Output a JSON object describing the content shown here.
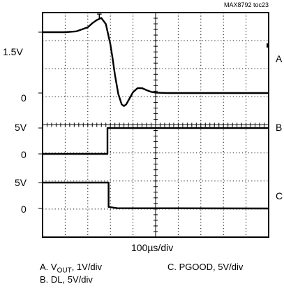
{
  "figure_id": "MAX8792 toc23",
  "chart_data": {
    "type": "line",
    "timebase": "100µs/div",
    "x_divisions": 10,
    "y_divisions": 8,
    "trigger_marker": "T",
    "channels": [
      {
        "letter": "A",
        "legend_name": "V",
        "legend_sub": "OUT",
        "scale": "1V/div",
        "levels": [
          {
            "label": "1.5V",
            "value": 1.5
          },
          {
            "label": "0",
            "value": 0
          }
        ],
        "x": [
          0,
          0.5,
          1,
          1.5,
          2,
          2.2,
          2.4,
          2.6,
          2.8,
          3.0,
          3.1,
          3.2,
          3.35,
          3.5,
          3.6,
          3.7,
          3.8,
          3.9,
          4.0,
          4.2,
          4.4,
          4.6,
          4.8,
          5.0,
          5.5,
          6,
          7,
          8,
          9,
          10
        ],
        "y": [
          1.5,
          1.5,
          1.5,
          1.52,
          1.62,
          1.72,
          1.8,
          1.85,
          1.7,
          1.2,
          0.85,
          0.45,
          -0.02,
          -0.28,
          -0.32,
          -0.28,
          -0.18,
          -0.08,
          0.02,
          0.12,
          0.12,
          0.07,
          0.03,
          0.01,
          0.0,
          0.0,
          0.0,
          0.0,
          0.0,
          0.0
        ]
      },
      {
        "letter": "B",
        "legend_name": "DL",
        "scale": "5V/div",
        "levels": [
          {
            "label": "5V",
            "value": 5
          },
          {
            "label": "0",
            "value": 0
          }
        ],
        "x": [
          0,
          2.87,
          2.87,
          10
        ],
        "y": [
          0,
          0,
          5,
          5
        ]
      },
      {
        "letter": "C",
        "legend_name": "PGOOD",
        "scale": "5V/div",
        "levels": [
          {
            "label": "5V",
            "value": 5
          },
          {
            "label": "0",
            "value": 0
          }
        ],
        "x": [
          0,
          2.92,
          2.92,
          3.3,
          10
        ],
        "y": [
          5,
          5,
          0.3,
          0.05,
          0
        ]
      }
    ]
  }
}
